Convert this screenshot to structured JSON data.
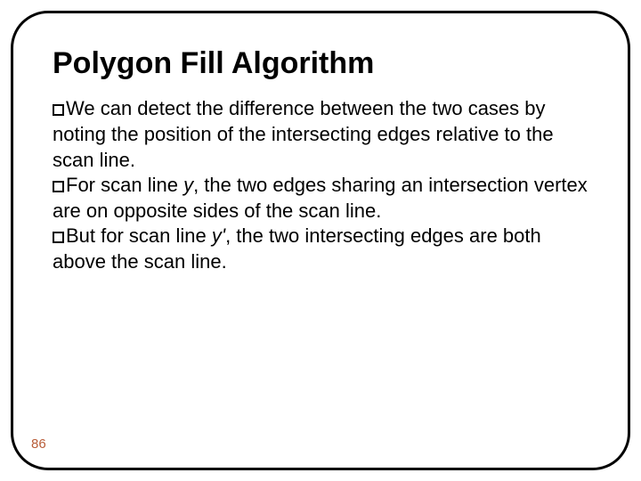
{
  "title": "Polygon Fill Algorithm",
  "title_fontsize": 34,
  "body_fontsize": 22,
  "pagenum_fontsize": 15,
  "bullets": [
    {
      "pre": "We can detect the difference between the two cases by noting the position of the intersecting edges relative to the scan line."
    },
    {
      "pre": "For scan line ",
      "em": "y",
      "post": ", the two edges sharing an intersection vertex are on opposite sides of the scan line."
    },
    {
      "pre": "But for scan line ",
      "em": "y'",
      "post": ", the two intersecting edges are both above the scan line."
    }
  ],
  "page_number": "86",
  "colors": {
    "border": "#000000",
    "text": "#000000",
    "pagenum": "#b85c38",
    "background": "#ffffff"
  }
}
